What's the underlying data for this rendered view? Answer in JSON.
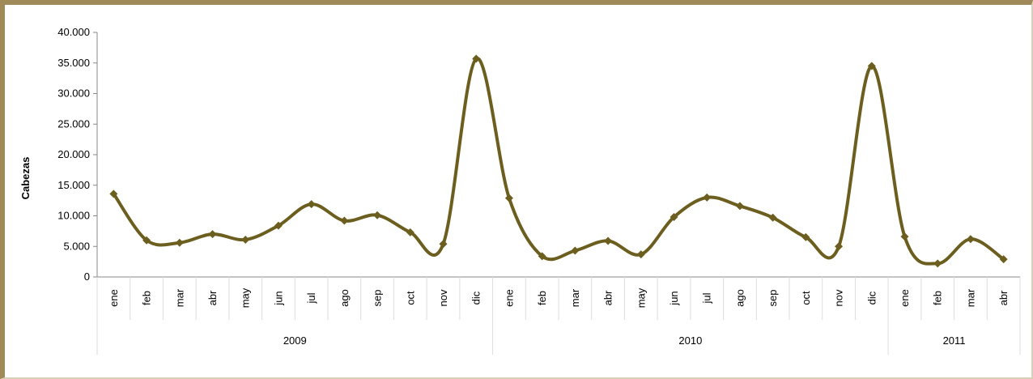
{
  "chart_data": {
    "type": "line",
    "ylabel": "Cabezas",
    "ylim": [
      0,
      40000
    ],
    "yticks": [
      "0",
      "5.000",
      "10.000",
      "15.000",
      "20.000",
      "25.000",
      "30.000",
      "35.000",
      "40.000"
    ],
    "categories": [
      "ene",
      "feb",
      "mar",
      "abr",
      "may",
      "jun",
      "jul",
      "ago",
      "sep",
      "oct",
      "nov",
      "dic",
      "ene",
      "feb",
      "mar",
      "abr",
      "may",
      "jun",
      "jul",
      "ago",
      "sep",
      "oct",
      "nov",
      "dic",
      "ene",
      "feb",
      "mar",
      "abr"
    ],
    "years": [
      {
        "label": "2009",
        "count": 12
      },
      {
        "label": "2010",
        "count": 12
      },
      {
        "label": "2011",
        "count": 4
      }
    ],
    "series": [
      {
        "values": [
          13600,
          6000,
          5600,
          7000,
          6100,
          8400,
          11900,
          9200,
          10100,
          7300,
          5400,
          35700,
          12900,
          3400,
          4300,
          5900,
          3700,
          9800,
          13000,
          11600,
          9700,
          6500,
          5000,
          34500,
          6600,
          2200,
          6200,
          2900
        ]
      }
    ],
    "line_color": "#6b5e1e",
    "grid": false,
    "legend": "none"
  }
}
